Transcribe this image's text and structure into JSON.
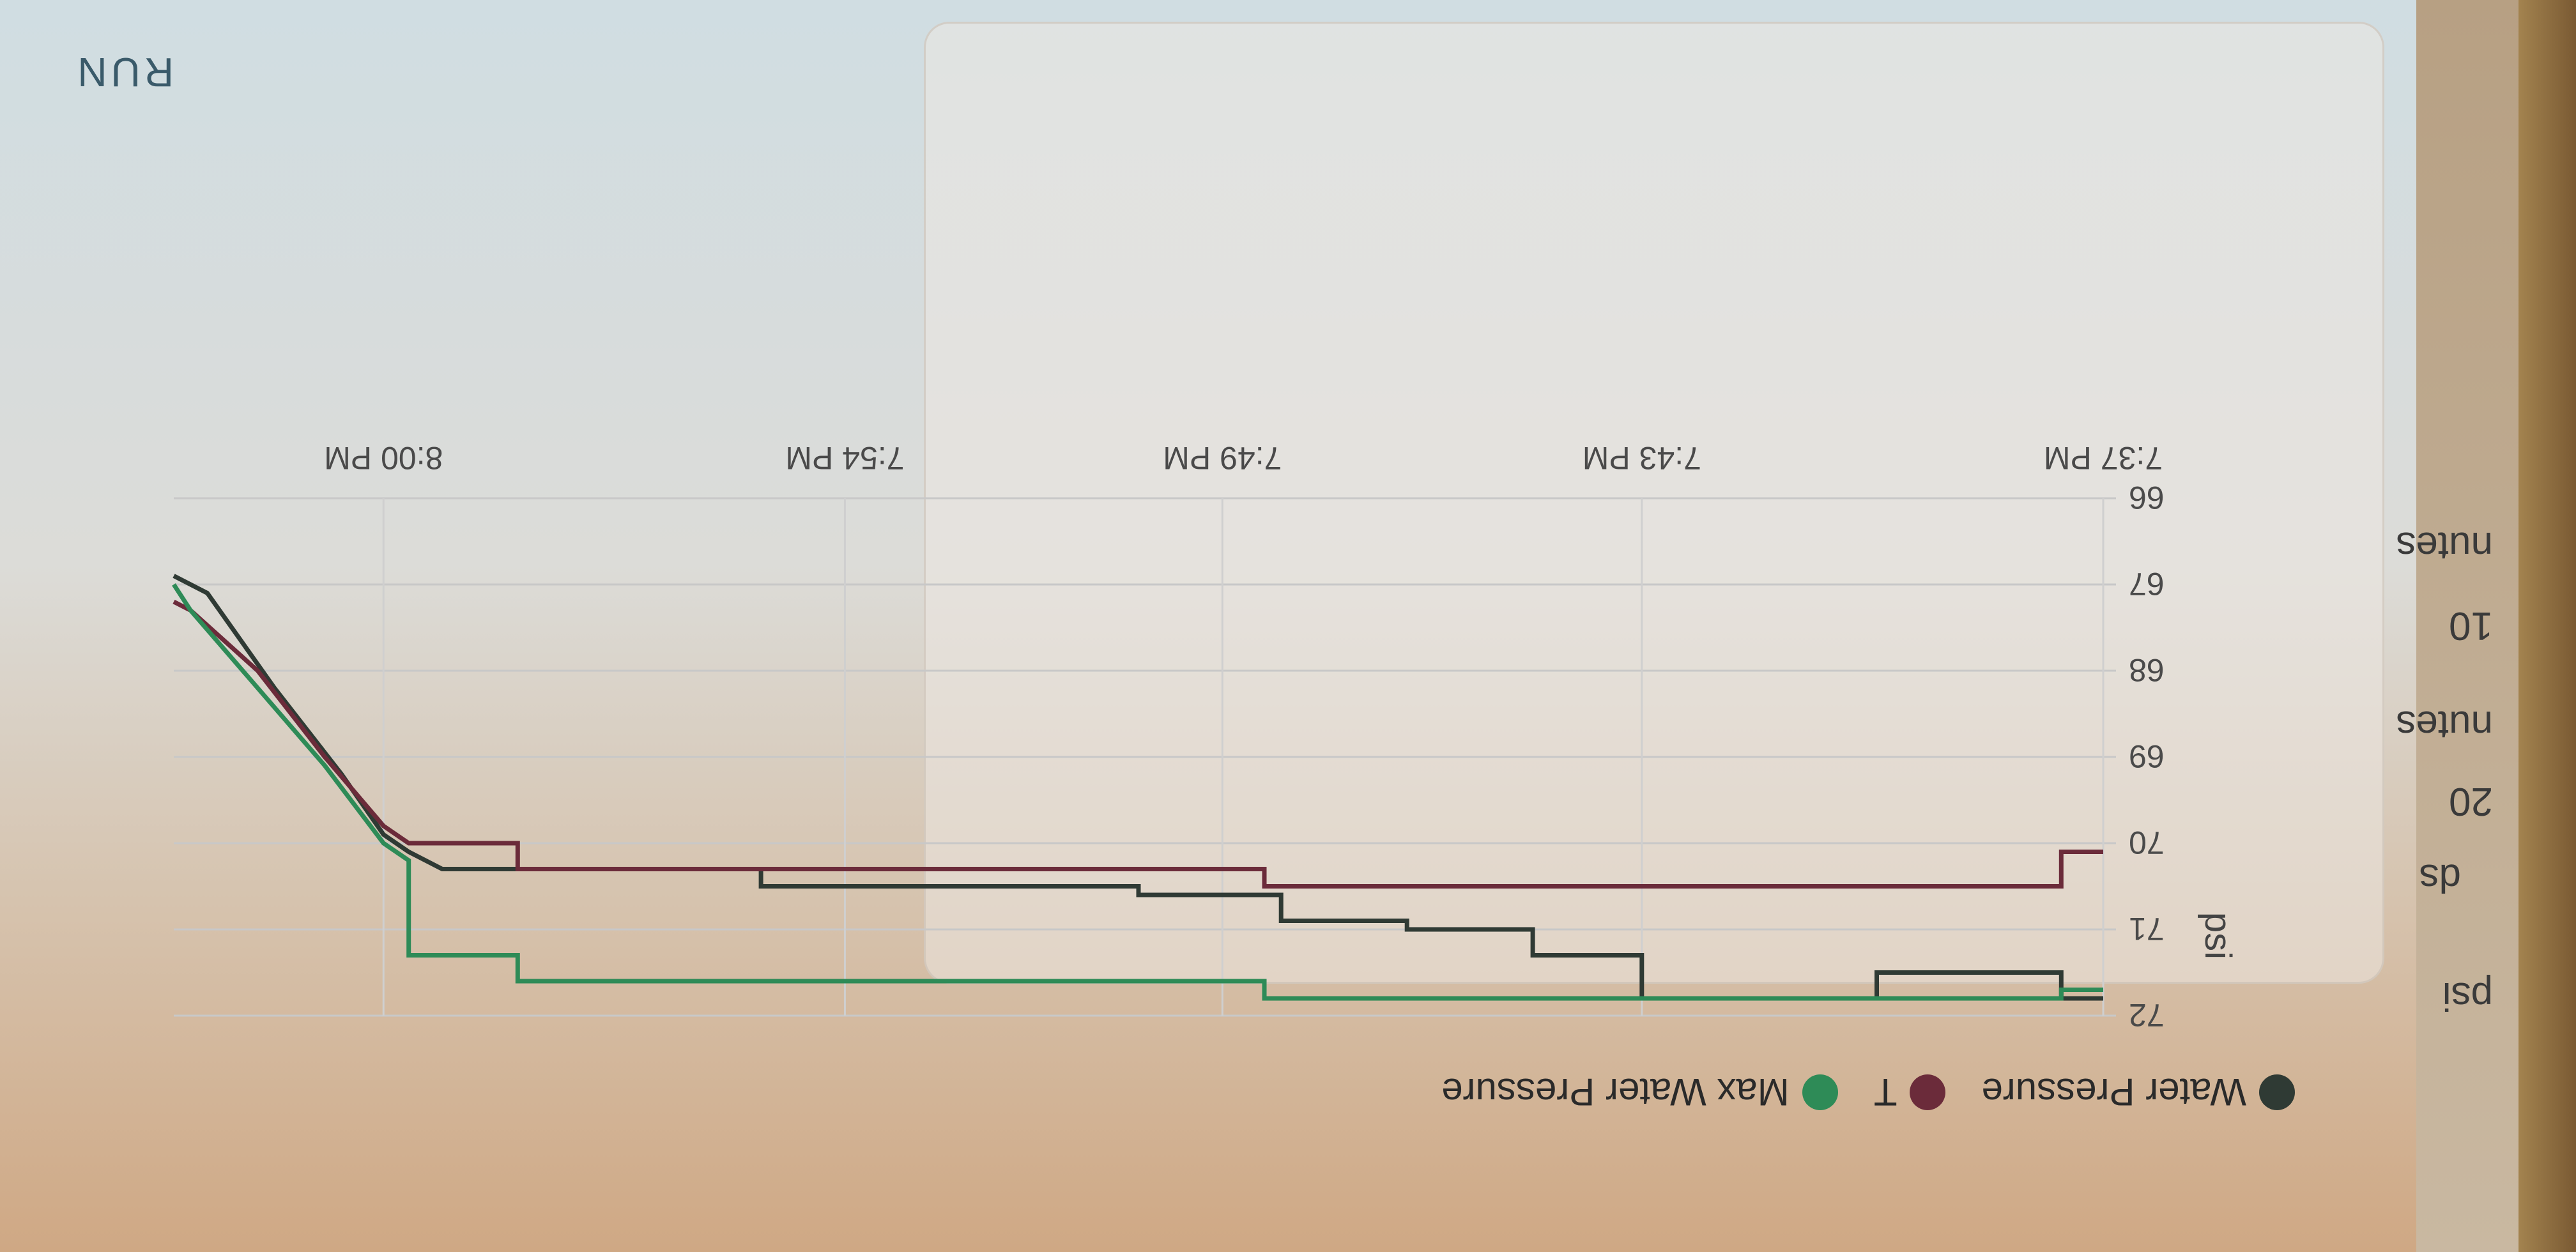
{
  "sidebar": {
    "texts": [
      "psi",
      "ds",
      "20",
      "nutes",
      "10",
      "nutes"
    ]
  },
  "run_label": "RUN",
  "legend": [
    {
      "label": "Water Pressure",
      "color": "#2f3a34"
    },
    {
      "label": "T",
      "color": "#6b2b3a"
    },
    {
      "label": "Max Water Pressure",
      "color": "#2e8b57"
    }
  ],
  "chart_data": {
    "type": "line",
    "ylabel": "psi",
    "ylim": [
      66,
      72
    ],
    "yticks": [
      "72",
      "71",
      "70",
      "69",
      "68",
      "67",
      "66"
    ],
    "xlim": [
      0,
      23
    ],
    "xticks": [
      {
        "label": "7:37 PM",
        "pos": 0
      },
      {
        "label": "7:43 PM",
        "pos": 5.5
      },
      {
        "label": "7:49 PM",
        "pos": 10.5
      },
      {
        "label": "7:54 PM",
        "pos": 15
      },
      {
        "label": "8:00 PM",
        "pos": 20.5
      }
    ],
    "grid": true,
    "series": [
      {
        "name": "Water Pressure",
        "color": "#2f3a34",
        "points": [
          [
            0,
            71.8
          ],
          [
            0.5,
            71.8
          ],
          [
            0.5,
            71.5
          ],
          [
            2.7,
            71.5
          ],
          [
            2.7,
            71.8
          ],
          [
            5.5,
            71.8
          ],
          [
            5.5,
            71.3
          ],
          [
            6.8,
            71.3
          ],
          [
            6.8,
            71.0
          ],
          [
            8.3,
            71.0
          ],
          [
            8.3,
            70.9
          ],
          [
            9.8,
            70.9
          ],
          [
            9.8,
            70.6
          ],
          [
            11.5,
            70.6
          ],
          [
            11.5,
            70.5
          ],
          [
            16.0,
            70.5
          ],
          [
            16.0,
            70.3
          ],
          [
            19.8,
            70.3
          ],
          [
            20.2,
            70.1
          ],
          [
            20.5,
            69.9
          ],
          [
            21.0,
            69.2
          ],
          [
            21.8,
            68.2
          ],
          [
            22.6,
            67.1
          ],
          [
            23,
            66.9
          ]
        ]
      },
      {
        "name": "T",
        "color": "#6b2b3a",
        "points": [
          [
            0,
            70.1
          ],
          [
            0.5,
            70.1
          ],
          [
            0.5,
            70.5
          ],
          [
            10.0,
            70.5
          ],
          [
            10.0,
            70.3
          ],
          [
            18.9,
            70.3
          ],
          [
            18.9,
            70.0
          ],
          [
            20.2,
            70.0
          ],
          [
            20.5,
            69.8
          ],
          [
            21.2,
            69.0
          ],
          [
            22.0,
            68.0
          ],
          [
            22.8,
            67.3
          ],
          [
            23,
            67.2
          ]
        ]
      },
      {
        "name": "Max Water Pressure",
        "color": "#2e8b57",
        "points": [
          [
            0,
            71.7
          ],
          [
            0.5,
            71.7
          ],
          [
            0.5,
            71.8
          ],
          [
            10.0,
            71.8
          ],
          [
            10.0,
            71.6
          ],
          [
            18.9,
            71.6
          ],
          [
            18.9,
            71.3
          ],
          [
            20.2,
            71.3
          ],
          [
            20.2,
            70.2
          ],
          [
            20.5,
            70.0
          ],
          [
            21.2,
            69.1
          ],
          [
            22.0,
            68.2
          ],
          [
            22.8,
            67.3
          ],
          [
            23,
            67.0
          ]
        ]
      }
    ]
  }
}
